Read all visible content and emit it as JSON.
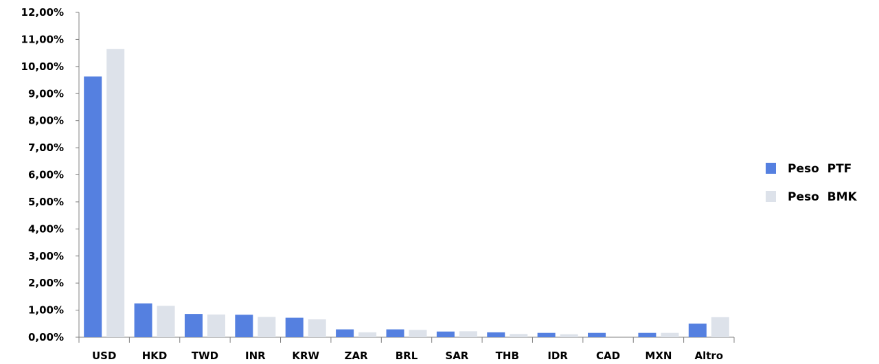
{
  "chart_data": {
    "type": "bar",
    "title": "",
    "xlabel": "",
    "ylabel": "",
    "categories": [
      "USD",
      "HKD",
      "TWD",
      "INR",
      "KRW",
      "ZAR",
      "BRL",
      "SAR",
      "THB",
      "IDR",
      "CAD",
      "MXN",
      "Altro"
    ],
    "series": [
      {
        "name": "Peso  PTF",
        "color": "#5580e0",
        "values": [
          9.63,
          1.25,
          0.86,
          0.83,
          0.72,
          0.29,
          0.29,
          0.21,
          0.18,
          0.16,
          0.16,
          0.16,
          0.5
        ]
      },
      {
        "name": "Peso  BMK",
        "color": "#dde2ea",
        "values": [
          10.65,
          1.16,
          0.84,
          0.75,
          0.66,
          0.18,
          0.27,
          0.22,
          0.12,
          0.11,
          0.0,
          0.16,
          0.74
        ]
      }
    ],
    "ylim": [
      0,
      12
    ],
    "ytick_labels": [
      "0,00%",
      "1,00%",
      "2,00%",
      "3,00%",
      "4,00%",
      "5,00%",
      "6,00%",
      "7,00%",
      "8,00%",
      "9,00%",
      "10,00%",
      "11,00%",
      "12,00%"
    ],
    "grid": false,
    "legend_position": "right"
  }
}
